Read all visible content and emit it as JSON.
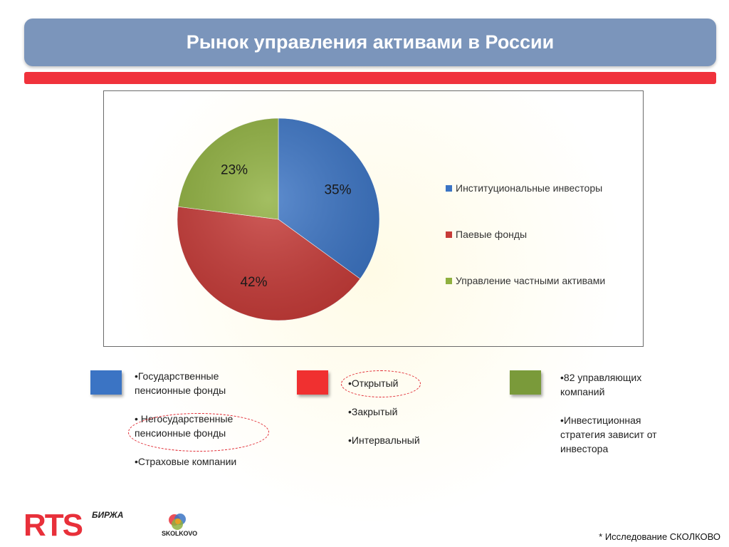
{
  "title": "Рынок управления активами в России",
  "colors": {
    "blue": "#3b74c4",
    "red": "#c73b38",
    "green": "#8fb03f",
    "accent_red": "#f0323c"
  },
  "chart_data": {
    "type": "pie",
    "categories": [
      "Институциональные инвесторы",
      "Паевые фонды",
      "Управление частными активами"
    ],
    "values": [
      35,
      42,
      23
    ],
    "labels": [
      "35%",
      "42%",
      "23%"
    ],
    "colors": [
      "#3b74c4",
      "#c73b38",
      "#8fb03f"
    ],
    "legend_position": "right"
  },
  "columns": [
    {
      "square_color": "#3b74c4",
      "items": [
        "•Государственные пенсионные фонды",
        "• Негосударственные пенсионные фонды",
        "•Страховые компании"
      ]
    },
    {
      "square_color": "#f03030",
      "items": [
        "•Открытый",
        "•Закрытый",
        "•Интервальный"
      ]
    },
    {
      "square_color": "#7a9a3a",
      "items": [
        "•82 управляющих компаний",
        "•Инвестиционная стратегия зависит от инвестора"
      ]
    }
  ],
  "logos": {
    "rts": "RTS",
    "birzha": "БИРЖА",
    "skolkovo": "SKOLKOVO"
  },
  "footnote": "* Исследование СКОЛКОВО"
}
